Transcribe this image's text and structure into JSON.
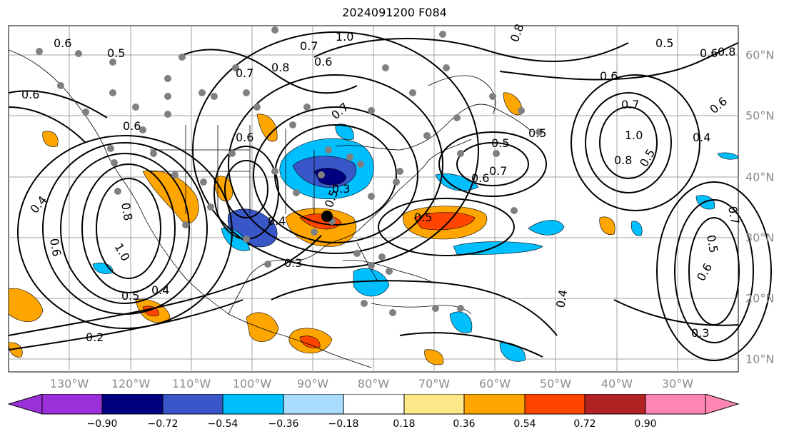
{
  "title": "2024091200 F084",
  "lon_labels": [
    "130°W",
    "120°W",
    "110°W",
    "100°W",
    "90°W",
    "80°W",
    "70°W",
    "60°W",
    "50°W",
    "40°W",
    "30°W"
  ],
  "lat_labels": [
    "60°N",
    "50°N",
    "40°N",
    "30°N",
    "20°N",
    "10°N"
  ],
  "colorbar": {
    "ticks": [
      "−0.90",
      "−0.72",
      "−0.54",
      "−0.36",
      "−0.18",
      "0.18",
      "0.36",
      "0.54",
      "0.72",
      "0.90"
    ],
    "colors": [
      "#9b30d9",
      "#000080",
      "#3a57c9",
      "#00bfff",
      "#aadcff",
      "#ffffff",
      "#ffe88a",
      "#ffa500",
      "#ff4500",
      "#b22222",
      "#ff85b3"
    ]
  },
  "contour_labels": [
    "0.6",
    "0.5",
    "0.8",
    "0.7",
    "1.0",
    "0.7",
    "0.8",
    "0.6",
    "0.5",
    "0.6",
    "0.8",
    "0.6",
    "0.6",
    "0.7",
    "1.0",
    "0.8",
    "0.5",
    "0.4",
    "0.5",
    "0.7",
    "0.6",
    "0.6",
    "0.4",
    "0.8",
    "1.0",
    "0.6",
    "0.5",
    "0.4",
    "0.2",
    "0.3",
    "0.5",
    "0.5",
    "0.4",
    "0.3",
    "0.7",
    "0.6",
    "0.5",
    "0.4",
    "0.6",
    "0.7",
    "0.5",
    "0.6",
    "0.3"
  ],
  "colors": {
    "contour": "#000000",
    "marker": "#808080",
    "grid": "#a0a0a0",
    "land": "#000000"
  }
}
